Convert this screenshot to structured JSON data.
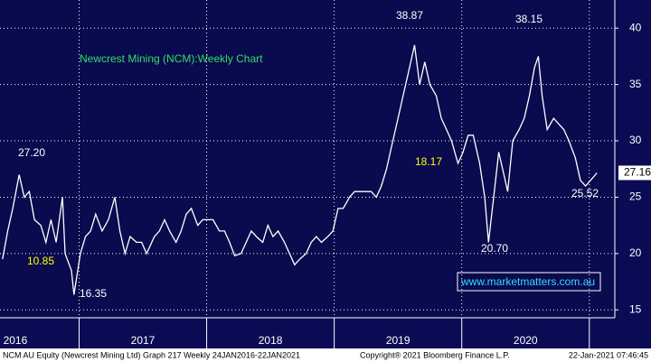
{
  "chart_data": {
    "type": "line",
    "title": "Newcrest Mining (NCM):Weekly Chart",
    "x": [
      2016.4,
      2016.44,
      2016.48,
      2016.53,
      2016.57,
      2016.61,
      2016.65,
      2016.7,
      2016.74,
      2016.78,
      2016.82,
      2016.87,
      2016.89,
      2016.94,
      2016.96,
      2017.01,
      2017.05,
      2017.09,
      2017.13,
      2017.18,
      2017.23,
      2017.28,
      2017.32,
      2017.36,
      2017.4,
      2017.45,
      2017.49,
      2017.53,
      2017.59,
      2017.63,
      2017.67,
      2017.71,
      2017.76,
      2017.8,
      2017.84,
      2017.88,
      2017.93,
      2017.97,
      2018.01,
      2018.05,
      2018.1,
      2018.14,
      2018.18,
      2018.22,
      2018.27,
      2018.31,
      2018.35,
      2018.39,
      2018.44,
      2018.48,
      2018.52,
      2018.56,
      2018.61,
      2018.65,
      2018.69,
      2018.73,
      2018.78,
      2018.82,
      2018.86,
      2018.9,
      2018.95,
      2018.99,
      2019.03,
      2019.07,
      2019.12,
      2019.16,
      2019.2,
      2019.24,
      2019.29,
      2019.33,
      2019.37,
      2019.41,
      2019.46,
      2019.5,
      2019.54,
      2019.58,
      2019.63,
      2019.67,
      2019.71,
      2019.75,
      2019.8,
      2019.84,
      2019.88,
      2019.92,
      2019.97,
      2020.01,
      2020.05,
      2020.09,
      2020.14,
      2020.18,
      2020.21,
      2020.25,
      2020.29,
      2020.33,
      2020.36,
      2020.4,
      2020.45,
      2020.49,
      2020.53,
      2020.57,
      2020.6,
      2020.63,
      2020.67,
      2020.72,
      2020.76,
      2020.8,
      2020.84,
      2020.89,
      2020.93,
      2020.97,
      2021.01,
      2021.06
    ],
    "values": [
      19.5,
      22,
      24,
      27,
      25,
      25.5,
      23,
      22.5,
      21,
      23,
      21,
      25,
      20,
      18.5,
      16.35,
      20,
      21.5,
      22,
      23.5,
      22,
      23,
      25,
      22,
      20,
      21.5,
      21,
      21,
      20,
      21.5,
      22,
      23,
      22,
      21,
      22,
      23.5,
      24,
      22.5,
      23,
      23,
      23,
      22,
      22,
      21,
      19.8,
      20,
      21,
      22,
      21.5,
      21,
      22.5,
      21.5,
      22,
      21,
      20,
      19,
      19.5,
      20,
      21,
      21.5,
      21,
      21.5,
      22,
      24,
      24,
      25,
      25.5,
      25.5,
      25.5,
      25.5,
      25,
      26,
      27.5,
      30,
      32,
      34,
      36,
      38.5,
      35,
      37,
      35,
      34,
      32,
      31,
      30,
      28,
      29,
      30.5,
      30.5,
      28,
      25,
      21,
      25,
      29,
      27,
      25.5,
      30,
      31,
      32,
      34,
      36.5,
      37.5,
      34,
      31,
      32,
      31.5,
      31,
      30,
      28.5,
      26.5,
      26,
      26.5,
      27.16
    ],
    "color": "#ffffff",
    "xlim": [
      2016.38,
      2021.2
    ],
    "xticks": [
      {
        "value": 2016.5,
        "label": "2016"
      },
      {
        "value": 2017.5,
        "label": "2017"
      },
      {
        "value": 2018.5,
        "label": "2018"
      },
      {
        "value": 2019.5,
        "label": "2019"
      },
      {
        "value": 2020.5,
        "label": "2020"
      }
    ],
    "year_boundaries": [
      2017,
      2018,
      2019,
      2020,
      2021
    ],
    "ylim": [
      14.3,
      42.5
    ],
    "yticks": [
      15,
      20,
      25,
      30,
      35,
      40
    ],
    "grid": true,
    "annotations": [
      {
        "text": "38.87",
        "color": "#ffffff"
      },
      {
        "text": "38.15",
        "color": "#ffffff"
      },
      {
        "text": "27.20",
        "color": "#ffffff"
      },
      {
        "text": "10.85",
        "color": "#ffff00"
      },
      {
        "text": "16.35",
        "color": "#ffffff"
      },
      {
        "text": "18.17",
        "color": "#ffff00"
      },
      {
        "text": "20.70",
        "color": "#ffffff"
      },
      {
        "text": "25.52",
        "color": "#ffffff"
      }
    ],
    "website": "www.marketmatters.com.au",
    "footer": {
      "left": "NCM AU Equity (Newcrest Mining Ltd) Graph 217  Weekly 24JAN2016-22JAN2021",
      "center": "Copyright® 2021 Bloomberg Finance L.P.",
      "right": "22-Jan-2021 07:46:45"
    }
  }
}
